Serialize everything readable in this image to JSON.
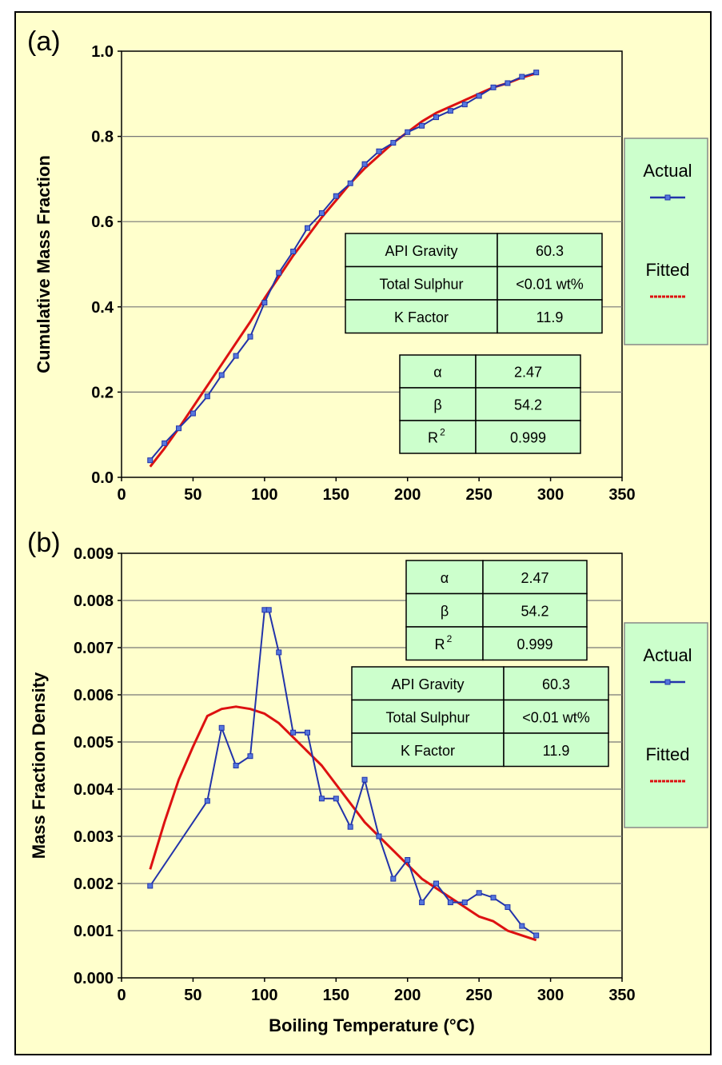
{
  "chart_data": [
    {
      "type": "line",
      "panel_label": "(a)",
      "title": "",
      "xlabel": "",
      "ylabel": "Cumulative Mass Fraction",
      "xlim": [
        0,
        350
      ],
      "ylim": [
        0,
        1.0
      ],
      "xticks": [
        "0",
        "50",
        "100",
        "150",
        "200",
        "250",
        "300",
        "350"
      ],
      "yticks": [
        "0.0",
        "0.2",
        "0.4",
        "0.6",
        "0.8",
        "1.0"
      ],
      "grid": "horizontal",
      "legend_placement": "right",
      "series": [
        {
          "name": "Actual",
          "color": "#2233aa",
          "marker": "square",
          "x": [
            20,
            30,
            40,
            50,
            60,
            70,
            80,
            90,
            100,
            110,
            120,
            130,
            140,
            150,
            160,
            170,
            180,
            190,
            200,
            210,
            220,
            230,
            240,
            250,
            260,
            270,
            280,
            290
          ],
          "y": [
            0.04,
            0.08,
            0.115,
            0.15,
            0.19,
            0.24,
            0.285,
            0.33,
            0.41,
            0.48,
            0.53,
            0.585,
            0.62,
            0.66,
            0.69,
            0.735,
            0.765,
            0.785,
            0.81,
            0.825,
            0.845,
            0.86,
            0.875,
            0.895,
            0.915,
            0.925,
            0.94,
            0.95
          ]
        },
        {
          "name": "Fitted",
          "color": "#dd1111",
          "marker": "none",
          "x": [
            20,
            30,
            40,
            50,
            60,
            70,
            80,
            90,
            100,
            110,
            120,
            130,
            140,
            150,
            160,
            170,
            180,
            190,
            200,
            210,
            220,
            230,
            240,
            250,
            260,
            270,
            280,
            290
          ],
          "y": [
            0.025,
            0.068,
            0.115,
            0.165,
            0.215,
            0.265,
            0.315,
            0.365,
            0.42,
            0.47,
            0.52,
            0.565,
            0.61,
            0.65,
            0.69,
            0.725,
            0.755,
            0.785,
            0.81,
            0.835,
            0.855,
            0.87,
            0.885,
            0.9,
            0.915,
            0.925,
            0.938,
            0.948
          ]
        }
      ],
      "properties_table": [
        [
          "API Gravity",
          "60.3"
        ],
        [
          "Total Sulphur",
          "<0.01 wt%"
        ],
        [
          "K Factor",
          "11.9"
        ]
      ],
      "params_table": [
        [
          "α",
          "2.47"
        ],
        [
          "β",
          "54.2"
        ],
        [
          "R",
          "2",
          "0.999"
        ]
      ],
      "legend": [
        "Actual",
        "Fitted"
      ]
    },
    {
      "type": "line",
      "panel_label": "(b)",
      "title": "",
      "xlabel": "Boiling Temperature (°C)",
      "ylabel": "Mass Fraction Density",
      "xlim": [
        0,
        350
      ],
      "ylim": [
        0,
        0.009
      ],
      "xticks": [
        "0",
        "50",
        "100",
        "150",
        "200",
        "250",
        "300",
        "350"
      ],
      "yticks": [
        "0.000",
        "0.001",
        "0.002",
        "0.003",
        "0.004",
        "0.005",
        "0.006",
        "0.007",
        "0.008",
        "0.009"
      ],
      "grid": "horizontal",
      "legend_placement": "right",
      "series": [
        {
          "name": "Actual",
          "color": "#2233aa",
          "marker": "square",
          "x": [
            20,
            60,
            70,
            80,
            90,
            100,
            103,
            110,
            120,
            130,
            140,
            150,
            160,
            170,
            180,
            190,
            200,
            210,
            220,
            230,
            240,
            250,
            260,
            270,
            280,
            290
          ],
          "y": [
            0.00195,
            0.00375,
            0.0053,
            0.0045,
            0.0047,
            0.0078,
            0.0078,
            0.0069,
            0.0052,
            0.0052,
            0.0038,
            0.0038,
            0.0032,
            0.0042,
            0.003,
            0.0021,
            0.0025,
            0.0016,
            0.002,
            0.0016,
            0.0016,
            0.0018,
            0.0017,
            0.0015,
            0.0011,
            0.0009
          ]
        },
        {
          "name": "Fitted",
          "color": "#dd1111",
          "marker": "none",
          "x": [
            20,
            30,
            40,
            50,
            60,
            70,
            80,
            90,
            100,
            110,
            120,
            130,
            140,
            150,
            160,
            170,
            180,
            190,
            200,
            210,
            220,
            230,
            240,
            250,
            260,
            270,
            280,
            290
          ],
          "y": [
            0.0023,
            0.0033,
            0.0042,
            0.0049,
            0.00555,
            0.0057,
            0.00575,
            0.0057,
            0.0056,
            0.0054,
            0.0051,
            0.0048,
            0.0045,
            0.0041,
            0.0037,
            0.0033,
            0.003,
            0.0027,
            0.0024,
            0.0021,
            0.0019,
            0.0017,
            0.0015,
            0.0013,
            0.0012,
            0.001,
            0.0009,
            0.0008
          ]
        }
      ],
      "params_table": [
        [
          "α",
          "2.47"
        ],
        [
          "β",
          "54.2"
        ],
        [
          "R",
          "2",
          "0.999"
        ]
      ],
      "properties_table": [
        [
          "API Gravity",
          "60.3"
        ],
        [
          "Total Sulphur",
          "<0.01 wt%"
        ],
        [
          "K Factor",
          "11.9"
        ]
      ],
      "legend": [
        "Actual",
        "Fitted"
      ]
    }
  ]
}
